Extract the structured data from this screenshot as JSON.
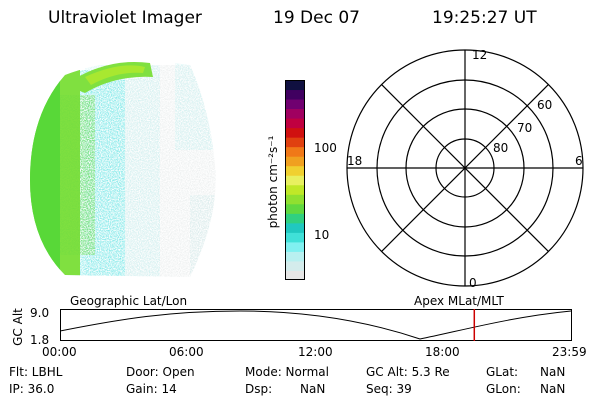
{
  "header": {
    "title": "Ultraviolet Imager",
    "date": "19 Dec 07",
    "time": "19:25:27 UT"
  },
  "colorbar": {
    "unit_label": "photon cm⁻²s⁻¹",
    "ticks": [
      "100",
      "10"
    ],
    "colors": [
      "#e6e6e6",
      "#d4ecec",
      "#b8f0f0",
      "#80f0f0",
      "#40e0d8",
      "#20c8c0",
      "#30d080",
      "#60d840",
      "#90e030",
      "#c0e828",
      "#e8f060",
      "#f0d030",
      "#f0a020",
      "#f07818",
      "#e04010",
      "#d01010",
      "#c00040",
      "#a00060",
      "#700070",
      "#400060",
      "#101040"
    ]
  },
  "polar": {
    "mlt_labels": {
      "top": "12",
      "left": "18",
      "right": "6",
      "bottom": "0"
    },
    "lat_labels": [
      "60",
      "70",
      "80"
    ]
  },
  "timeline": {
    "left_label": "Geographic Lat/Lon",
    "right_label": "Apex MLat/MLT",
    "y_axis_label": "GC Alt",
    "y_ticks": [
      "9.0",
      "1.8"
    ],
    "x_ticks": [
      "00:00",
      "06:00",
      "12:00",
      "18:00",
      "23:59"
    ],
    "current_time_hours": 19.42
  },
  "info": {
    "flt": "Flt: LBHL",
    "ip": "IP: 36.0",
    "door": "Door: Open",
    "gain": "Gain: 14",
    "mode": "Mode: Normal",
    "dsp": "Dsp:",
    "dsp_val": "NaN",
    "gc_alt": "GC Alt: 5.3 Re",
    "seq": "Seq: 39",
    "glat": "GLat:",
    "glat_val": "NaN",
    "glon": "GLon:",
    "glon_val": "NaN"
  },
  "image_colors": {
    "edge_green": "#58d838",
    "mid_green": "#80e040",
    "cyan": "#60e4e4",
    "light_cyan": "#c8f2f2",
    "gray": "#e4e8e8",
    "marker": "#cc0000"
  }
}
